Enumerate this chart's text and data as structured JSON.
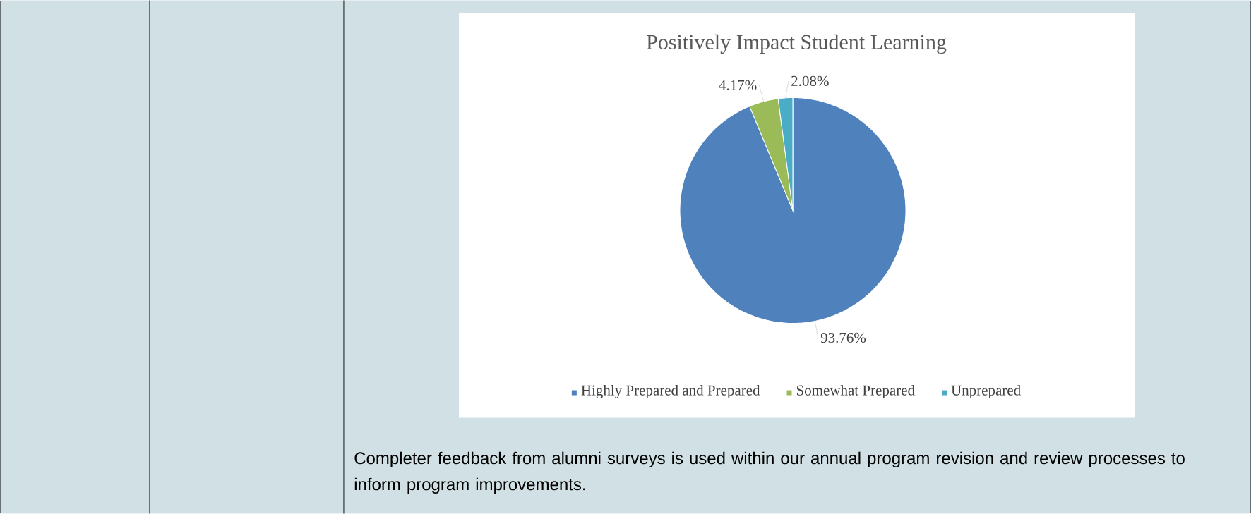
{
  "chart_data": {
    "type": "pie",
    "title": "Positively Impact Student Learning",
    "categories": [
      "Highly Prepared and Prepared",
      "Somewhat Prepared",
      "Unprepared"
    ],
    "values": [
      93.76,
      4.17,
      2.08
    ],
    "value_labels": [
      "93.76%",
      "4.17%",
      "2.08%"
    ],
    "colors": [
      "#4f81bd",
      "#9bbb59",
      "#4bacc6"
    ],
    "legend": "bottom",
    "annotations": [
      "Completer feedback from alumni surveys is used within our annual program revision and review processes to inform program improvements."
    ]
  }
}
